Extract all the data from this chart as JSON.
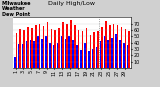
{
  "title": "Milwaukee\nWeather\nDew Point",
  "subtitle": "Daily High/Low",
  "legend_high": "High",
  "legend_low": "Low",
  "color_high": "#ff0000",
  "color_low": "#0000ff",
  "background_color": "#d0d0d0",
  "plot_background": "#ffffff",
  "ylim": [
    0,
    80
  ],
  "yticks": [
    10,
    20,
    30,
    40,
    50,
    60,
    70
  ],
  "bar_width": 0.4,
  "categories": [
    "1",
    "2",
    "3",
    "4",
    "5",
    "6",
    "7",
    "8",
    "9",
    "10",
    "11",
    "12",
    "13",
    "14",
    "15",
    "16",
    "17",
    "18",
    "19",
    "20",
    "21",
    "22",
    "23",
    "24",
    "25",
    "26",
    "27",
    "28",
    "29",
    "30"
  ],
  "high_values": [
    55,
    62,
    60,
    65,
    63,
    68,
    70,
    67,
    72,
    62,
    60,
    63,
    72,
    70,
    76,
    68,
    60,
    58,
    63,
    52,
    57,
    58,
    65,
    74,
    68,
    70,
    68,
    65,
    62,
    58
  ],
  "low_values": [
    18,
    38,
    38,
    42,
    44,
    42,
    50,
    46,
    50,
    40,
    36,
    40,
    50,
    46,
    50,
    44,
    36,
    28,
    40,
    26,
    30,
    33,
    42,
    50,
    44,
    48,
    54,
    44,
    40,
    36
  ],
  "dotted_line_x": 22,
  "tick_fontsize": 3.5,
  "title_fontsize": 3.5,
  "subtitle_fontsize": 4.5,
  "legend_fontsize": 3.5
}
